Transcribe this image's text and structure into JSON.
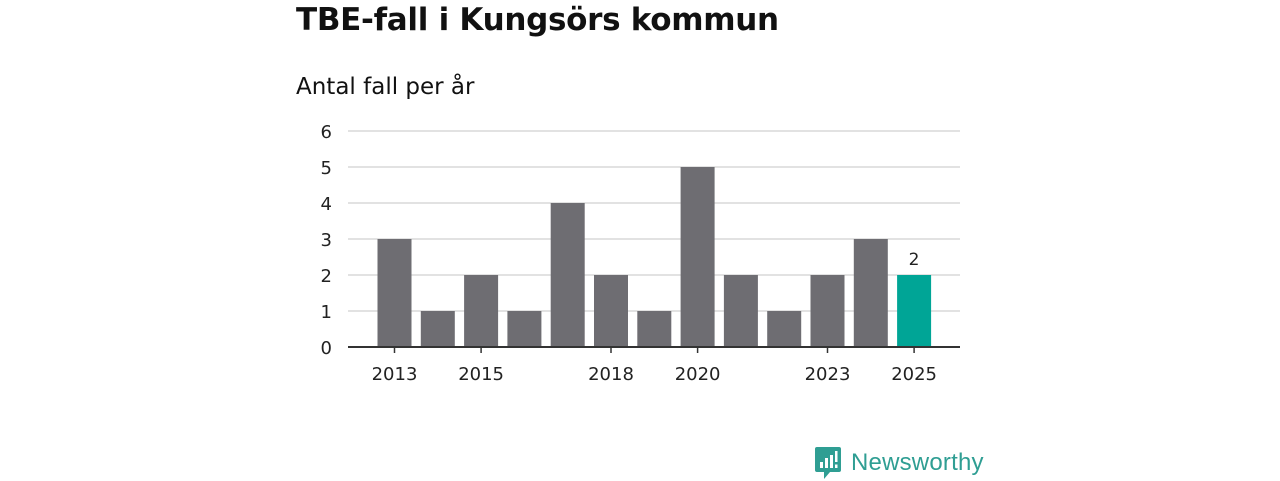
{
  "header": {
    "title": "TBE-fall i Kungsörs kommun",
    "subtitle": "Antal fall per år"
  },
  "chart_data": {
    "type": "bar",
    "title": "TBE-fall i Kungsörs kommun",
    "subtitle": "Antal fall per år",
    "xlabel": "",
    "ylabel": "",
    "ylim": [
      0,
      6
    ],
    "yticks": [
      0,
      1,
      2,
      3,
      4,
      5,
      6
    ],
    "grid": true,
    "categories": [
      "2013",
      "2014",
      "2015",
      "2016",
      "2017",
      "2018",
      "2019",
      "2020",
      "2021",
      "2022",
      "2023",
      "2024",
      "2025"
    ],
    "values": [
      3,
      1,
      2,
      1,
      4,
      2,
      1,
      5,
      2,
      1,
      2,
      3,
      2
    ],
    "xtick_labels": [
      "2013",
      "2015",
      "2018",
      "2020",
      "2023",
      "2025"
    ],
    "highlight": {
      "category": "2025",
      "value_label": "2"
    },
    "colors": {
      "bar": "#6e6d72",
      "highlight": "#00a596",
      "grid": "#d9d9d9",
      "axis": "#333333"
    }
  },
  "brand": {
    "name": "Newsworthy",
    "icon": "newsworthy-logo-icon",
    "color": "#2f9e93"
  }
}
